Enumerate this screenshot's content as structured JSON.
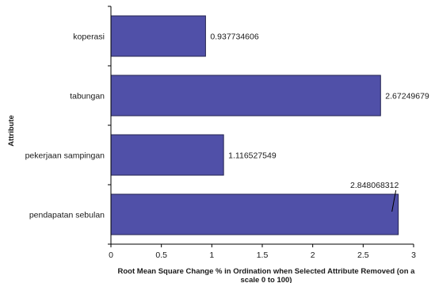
{
  "chart_data": {
    "type": "bar",
    "orientation": "horizontal",
    "title": "",
    "ylabel": "Attribute",
    "xlabel_line1": "Root Mean Square Change % in Ordination when Selected Attribute Removed (on a",
    "xlabel_line2": "scale 0 to 100)",
    "categories": [
      "koperasi",
      "tabungan",
      "pekerjaan sampingan",
      "pendapatan sebulan"
    ],
    "values": [
      0.937734606,
      2.67249679,
      1.116527549,
      2.848068312
    ],
    "value_labels": [
      "0.937734606",
      "2.67249679",
      "1.116527549",
      "2.848068312"
    ],
    "xlim": [
      0,
      3
    ],
    "x_ticks": [
      "0",
      "0.5",
      "1",
      "1.5",
      "2",
      "2.5",
      "3"
    ],
    "grid": false,
    "legend": "none",
    "bar_color": "#5050a8",
    "bar_border_color": "#232350"
  }
}
